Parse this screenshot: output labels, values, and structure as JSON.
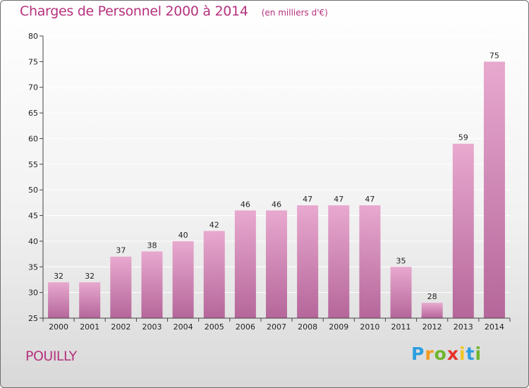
{
  "chart_data": {
    "type": "bar",
    "title": "Charges de Personnel 2000 à 2014",
    "subtitle": "(en milliers d'€)",
    "categories": [
      "2000",
      "2001",
      "2002",
      "2003",
      "2004",
      "2005",
      "2006",
      "2007",
      "2008",
      "2009",
      "2010",
      "2011",
      "2012",
      "2013",
      "2014"
    ],
    "values": [
      32,
      32,
      37,
      38,
      40,
      42,
      46,
      46,
      47,
      47,
      47,
      35,
      28,
      59,
      75
    ],
    "ylim": [
      25,
      80
    ],
    "yticks": [
      25,
      30,
      35,
      40,
      45,
      50,
      55,
      60,
      65,
      70,
      75,
      80
    ],
    "grid": true,
    "bar_color_top": "#e8a9cf",
    "bar_color_bottom": "#b5669a",
    "grid_color": "#ffffff"
  },
  "commune": "POUILLY",
  "logo": {
    "letters": [
      "P",
      "r",
      "o",
      "x",
      "i",
      "t",
      "i"
    ],
    "colors": [
      "#2d9fe0",
      "#f29a1f",
      "#6fb52c",
      "#e7312a",
      "#f2c61f",
      "#2d9fe0",
      "#6fb52c"
    ]
  }
}
